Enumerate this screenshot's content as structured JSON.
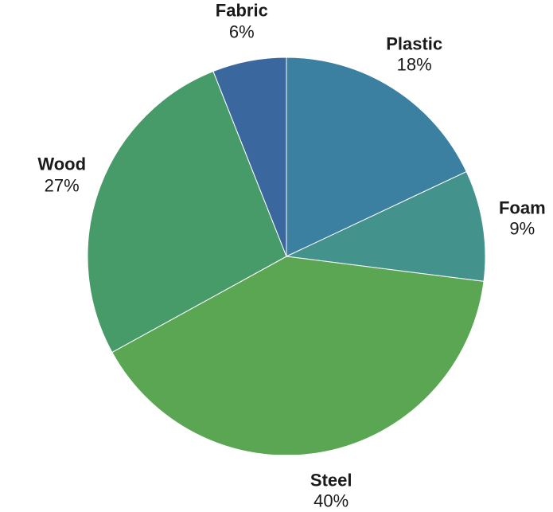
{
  "chart_data": {
    "type": "pie",
    "categories": [
      "Plastic",
      "Foam",
      "Steel",
      "Wood",
      "Fabric"
    ],
    "values": [
      18,
      9,
      40,
      27,
      6
    ],
    "labels": [
      "18%",
      "9%",
      "40%",
      "27%",
      "6%"
    ],
    "colors": [
      "#3c80a1",
      "#43938c",
      "#5ba653",
      "#469b68",
      "#3a679e"
    ],
    "start_angle": "12 o'clock",
    "direction": "clockwise",
    "legend": "none",
    "title": ""
  }
}
